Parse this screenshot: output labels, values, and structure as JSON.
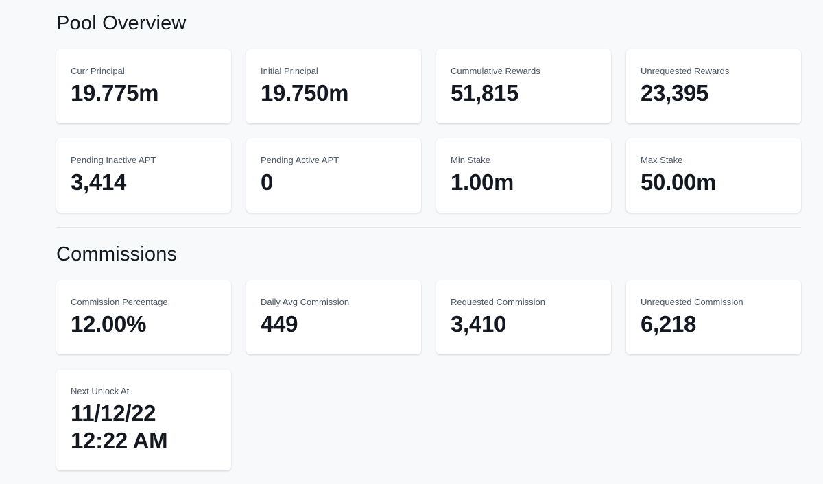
{
  "pool_overview": {
    "title": "Pool Overview",
    "cards": [
      {
        "label": "Curr Principal",
        "value": "19.775m"
      },
      {
        "label": "Initial Principal",
        "value": "19.750m"
      },
      {
        "label": "Cummulative Rewards",
        "value": "51,815"
      },
      {
        "label": "Unrequested Rewards",
        "value": "23,395"
      },
      {
        "label": "Pending Inactive APT",
        "value": "3,414"
      },
      {
        "label": "Pending Active APT",
        "value": "0"
      },
      {
        "label": "Min Stake",
        "value": "1.00m"
      },
      {
        "label": "Max Stake",
        "value": "50.00m"
      }
    ]
  },
  "commissions": {
    "title": "Commissions",
    "cards": [
      {
        "label": "Commission Percentage",
        "value": "12.00%"
      },
      {
        "label": "Daily Avg Commission",
        "value": "449"
      },
      {
        "label": "Requested Commission",
        "value": "3,410"
      },
      {
        "label": "Unrequested Commission",
        "value": "6,218"
      },
      {
        "label": "Next Unlock At",
        "value": "11/12/22 12:22 AM"
      }
    ]
  }
}
